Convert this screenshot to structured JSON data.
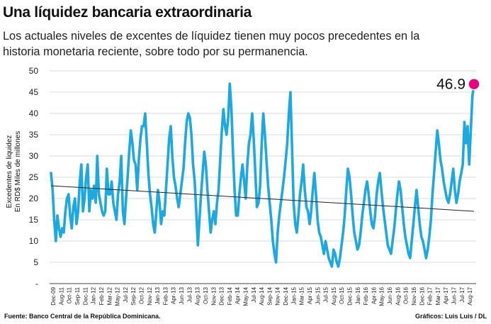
{
  "title": "Una líquidez bancaria extraordinaria",
  "subtitle": "Los actuales niveles de excentes de líquidez tienen muy pocos precedentes en la historia monetaria reciente, sobre todo por su permanencia.",
  "source": "Fuente: Banco Central de la República Dominicana.",
  "credit": "Gráficos: Luis Luis / DL",
  "colors": {
    "series": "#1ea8e0",
    "trend": "#222222",
    "highlight": "#e6007e"
  },
  "chart_data": {
    "type": "line",
    "ylabel": "Excedentes de liquidez\nEn RD$ Miles de millones",
    "ylim": [
      0,
      50
    ],
    "yticks": [
      "-",
      "5",
      "10",
      "15",
      "20",
      "25",
      "30",
      "35",
      "40",
      "45",
      "50"
    ],
    "x_tick_labels": [
      "Dec-09",
      "Aug-11",
      "Oct-11",
      "Sep-11",
      "Dec-11",
      "Jan-12",
      "Feb-12",
      "Mar-12",
      "May-12",
      "Jul-12",
      "Sep-12",
      "Oct-12",
      "Nov-12",
      "Jan-13",
      "Feb-13",
      "Apr-13",
      "Jun-13",
      "Jul-13",
      "Aug-13",
      "Oct-13",
      "Nov-13",
      "Dec-13",
      "Feb-14",
      "Apr-14",
      "May-14",
      "Jul-14",
      "Aug-14",
      "Sep-14",
      "Nov-14",
      "Dec-14",
      "Jan-15",
      "Mar-15",
      "Apr-15",
      "Jun-15",
      "Jul-15",
      "Aug-15",
      "Oct-15",
      "Dec-15",
      "Jan-16",
      "Feb-16",
      "Apr-16",
      "May-16",
      "Jun-16",
      "Aug-16",
      "Oct-16",
      "Nov-16",
      "Dec-16",
      "Feb-17",
      "Mar-17",
      "Apr-17",
      "Jun-17",
      "Jul-17",
      "Aug-17"
    ],
    "series": [
      {
        "values": [
          26,
          22,
          15,
          10,
          16,
          13,
          11,
          13,
          12,
          17,
          20,
          21,
          16,
          13,
          18,
          20,
          14,
          17,
          24,
          28,
          17,
          20,
          25,
          28,
          17,
          22,
          20,
          23,
          19,
          30,
          21,
          19,
          17,
          16,
          17,
          27,
          21,
          21,
          24,
          19,
          17,
          15,
          21,
          24,
          30,
          17,
          14,
          20,
          25,
          31,
          36,
          33,
          29,
          28,
          22,
          29,
          34,
          37,
          37,
          40,
          33,
          26,
          21,
          18,
          14,
          12,
          17,
          22,
          19,
          14,
          17,
          16,
          22,
          28,
          34,
          37,
          30,
          25,
          23,
          20,
          18,
          21,
          24,
          27,
          33,
          38,
          40,
          39,
          35,
          28,
          24,
          17,
          9,
          15,
          21,
          26,
          31,
          28,
          22,
          17,
          12,
          15,
          17,
          14,
          19,
          22,
          29,
          36,
          41,
          37,
          35,
          39,
          47,
          41,
          31,
          22,
          16,
          16,
          21,
          25,
          28,
          24,
          20,
          28,
          33,
          35,
          40,
          34,
          26,
          18,
          19,
          23,
          33,
          40,
          35,
          29,
          23,
          19,
          15,
          10,
          7,
          5,
          12,
          16,
          19,
          22,
          25,
          29,
          33,
          40,
          45,
          32,
          19,
          14,
          12,
          16,
          21,
          24,
          28,
          22,
          18,
          17,
          14,
          17,
          22,
          26,
          21,
          15,
          12,
          11,
          9,
          7,
          10,
          8,
          6,
          5,
          4,
          8,
          7,
          5,
          4,
          6,
          9,
          12,
          16,
          22,
          27,
          25,
          21,
          16,
          12,
          10,
          8,
          9,
          12,
          16,
          19,
          22,
          24,
          21,
          17,
          14,
          13,
          16,
          21,
          24,
          26,
          22,
          18,
          15,
          12,
          9,
          8,
          7,
          10,
          13,
          17,
          21,
          24,
          22,
          18,
          14,
          11,
          9,
          7,
          6,
          10,
          14,
          18,
          22,
          18,
          14,
          11,
          10,
          8,
          6,
          8,
          11,
          15,
          21,
          26,
          31,
          36,
          33,
          29,
          27,
          24,
          22,
          20,
          19,
          21,
          24,
          27,
          22,
          19,
          21,
          24,
          26,
          28,
          38,
          33,
          37,
          28,
          36,
          44,
          46.9
        ],
        "name": ""
      }
    ],
    "trend": {
      "start": 23,
      "end": 17
    },
    "highlight": {
      "value": 46.9,
      "label": "46.9"
    },
    "grid": true
  }
}
